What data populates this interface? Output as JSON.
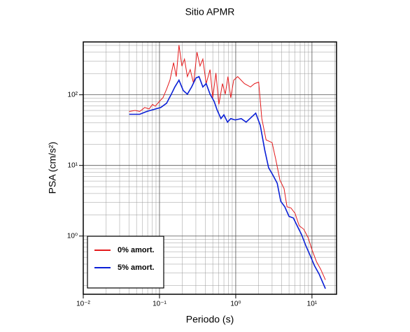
{
  "chart_data": {
    "type": "line",
    "title": "Sitio APMR",
    "xlabel": "Periodo (s)",
    "ylabel": "PSA (cm/s²)",
    "xlog": true,
    "ylog": true,
    "grid": true,
    "legend": "lower left",
    "xlim": [
      0.01,
      21
    ],
    "ylim": [
      0.15,
      560
    ],
    "xticks": [
      {
        "value": 0.01,
        "label": "10⁻²"
      },
      {
        "value": 0.1,
        "label": "10⁻¹"
      },
      {
        "value": 1,
        "label": "10⁰"
      },
      {
        "value": 10,
        "label": "10¹"
      }
    ],
    "yticks": [
      {
        "value": 1,
        "label": "10⁰"
      },
      {
        "value": 10,
        "label": "10¹"
      },
      {
        "value": 100,
        "label": "10²"
      }
    ],
    "series": [
      {
        "name": "0% amort.",
        "color": "#e41a1c",
        "x": [
          0.04,
          0.048,
          0.055,
          0.064,
          0.073,
          0.081,
          0.088,
          0.1,
          0.111,
          0.124,
          0.137,
          0.153,
          0.166,
          0.18,
          0.197,
          0.213,
          0.232,
          0.253,
          0.28,
          0.31,
          0.34,
          0.37,
          0.41,
          0.46,
          0.5,
          0.55,
          0.6,
          0.67,
          0.73,
          0.79,
          0.86,
          0.94,
          1.06,
          1.3,
          1.56,
          1.77,
          2.0,
          2.2,
          2.5,
          3.0,
          3.35,
          3.8,
          4.3,
          4.7,
          5.3,
          6.0,
          6.8,
          7.8,
          8.9,
          10,
          11.5,
          13,
          15
        ],
        "values": [
          58,
          60,
          58,
          66,
          63,
          73,
          69,
          81,
          91,
          120,
          161,
          285,
          181,
          505,
          255,
          320,
          181,
          227,
          144,
          402,
          255,
          320,
          144,
          227,
          91,
          203,
          73,
          144,
          102,
          181,
          91,
          161,
          181,
          144,
          129,
          144,
          151,
          46,
          23,
          21,
          12.2,
          6.2,
          4.7,
          2.6,
          2.5,
          2.1,
          1.4,
          1.25,
          0.95,
          0.64,
          0.43,
          0.34,
          0.24
        ]
      },
      {
        "name": "5% amort.",
        "color": "#0a1fd6",
        "x": [
          0.04,
          0.055,
          0.068,
          0.084,
          0.104,
          0.124,
          0.143,
          0.159,
          0.18,
          0.205,
          0.232,
          0.264,
          0.3,
          0.33,
          0.37,
          0.41,
          0.46,
          0.52,
          0.57,
          0.64,
          0.7,
          0.78,
          0.86,
          0.98,
          1.18,
          1.37,
          1.6,
          1.83,
          2.1,
          2.4,
          2.7,
          3.05,
          3.5,
          3.9,
          4.4,
          5.0,
          5.7,
          6.5,
          7.3,
          8.3,
          9.4,
          10.8,
          12.4,
          15
        ],
        "values": [
          53,
          53,
          58,
          62,
          66,
          76,
          102,
          129,
          161,
          115,
          102,
          129,
          173,
          181,
          129,
          144,
          102,
          81,
          61,
          46,
          52,
          41,
          46,
          44,
          46,
          41,
          48,
          55,
          37,
          16.5,
          9.3,
          7.4,
          5.6,
          3.1,
          2.6,
          1.9,
          1.8,
          1.35,
          1.05,
          0.73,
          0.54,
          0.38,
          0.29,
          0.18
        ]
      }
    ]
  }
}
